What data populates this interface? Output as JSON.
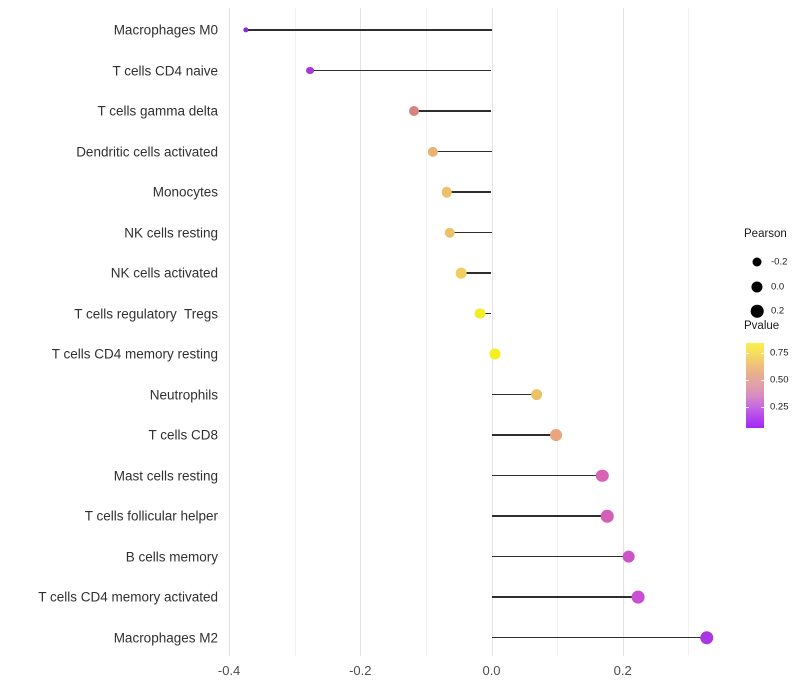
{
  "figure": {
    "background": "#ffffff"
  },
  "chart_data": {
    "type": "scatter",
    "subtype": "lollipop",
    "orientation": "horizontal",
    "title": "",
    "xlabel": "",
    "ylabel": "",
    "xlim": [
      -0.41,
      0.37
    ],
    "grid": "vertical-only",
    "legend_position": "right",
    "categories": [
      "Macrophages M0",
      "T cells CD4 naive",
      "T cells gamma delta",
      "Dendritic cells activated",
      "Monocytes",
      "NK cells resting",
      "NK cells activated",
      "T cells regulatory  Tregs",
      "T cells CD4 memory resting",
      "Neutrophils",
      "T cells CD8",
      "Mast cells resting",
      "T cells follicular helper",
      "B cells memory",
      "T cells CD4 memory activated",
      "Macrophages M2"
    ],
    "points": [
      {
        "category": "Macrophages M0",
        "pearson": -0.375,
        "color": "#8E2BD8"
      },
      {
        "category": "T cells CD4 naive",
        "pearson": -0.277,
        "color": "#A43BDB"
      },
      {
        "category": "T cells gamma delta",
        "pearson": -0.118,
        "color": "#D5847F"
      },
      {
        "category": "Dendritic cells activated",
        "pearson": -0.09,
        "color": "#EBB275"
      },
      {
        "category": "Monocytes",
        "pearson": -0.068,
        "color": "#EDC169"
      },
      {
        "category": "NK cells resting",
        "pearson": -0.064,
        "color": "#EDC169"
      },
      {
        "category": "NK cells activated",
        "pearson": -0.046,
        "color": "#F0CE60"
      },
      {
        "category": "T cells regulatory  Tregs",
        "pearson": -0.017,
        "color": "#F3EC26"
      },
      {
        "category": "T cells CD4 memory resting",
        "pearson": 0.006,
        "color": "#F6EF1F"
      },
      {
        "category": "Neutrophils",
        "pearson": 0.069,
        "color": "#ECC266"
      },
      {
        "category": "T cells CD8",
        "pearson": 0.099,
        "color": "#EAA57E"
      },
      {
        "category": "Mast cells resting",
        "pearson": 0.169,
        "color": "#D863B1"
      },
      {
        "category": "T cells follicular helper",
        "pearson": 0.176,
        "color": "#D35FB6"
      },
      {
        "category": "B cells memory",
        "pearson": 0.209,
        "color": "#CD54C6"
      },
      {
        "category": "T cells CD4 memory activated",
        "pearson": 0.223,
        "color": "#C94ED2"
      },
      {
        "category": "Macrophages M2",
        "pearson": 0.328,
        "color": "#A936E3"
      }
    ],
    "x_ticks": [
      {
        "value": -0.4,
        "label": "-0.4"
      },
      {
        "value": -0.2,
        "label": "-0.2"
      },
      {
        "value": 0.0,
        "label": "0.0"
      },
      {
        "value": 0.2,
        "label": "0.2"
      }
    ],
    "x_gridlines_minor": [
      -0.3,
      -0.1,
      0.1,
      0.3
    ]
  },
  "legend": {
    "size": {
      "title": "Pearson",
      "items": [
        {
          "value": -0.2,
          "label": "-0.2"
        },
        {
          "value": 0.0,
          "label": "0.0"
        },
        {
          "value": 0.2,
          "label": "0.2"
        }
      ],
      "dot_color": "#000000"
    },
    "color": {
      "title": "Pvalue",
      "range": [
        0.055,
        0.845
      ],
      "ticks": [
        {
          "value": 0.75,
          "label": "0.75"
        },
        {
          "value": 0.5,
          "label": "0.50"
        },
        {
          "value": 0.25,
          "label": "0.25"
        }
      ],
      "gradient_top_to_bottom": [
        "#FAF04A",
        "#F6DC5F",
        "#F0C377",
        "#E8AC93",
        "#E19FA9",
        "#D88BC3",
        "#C669E0",
        "#B346EC",
        "#A428F2"
      ]
    }
  }
}
